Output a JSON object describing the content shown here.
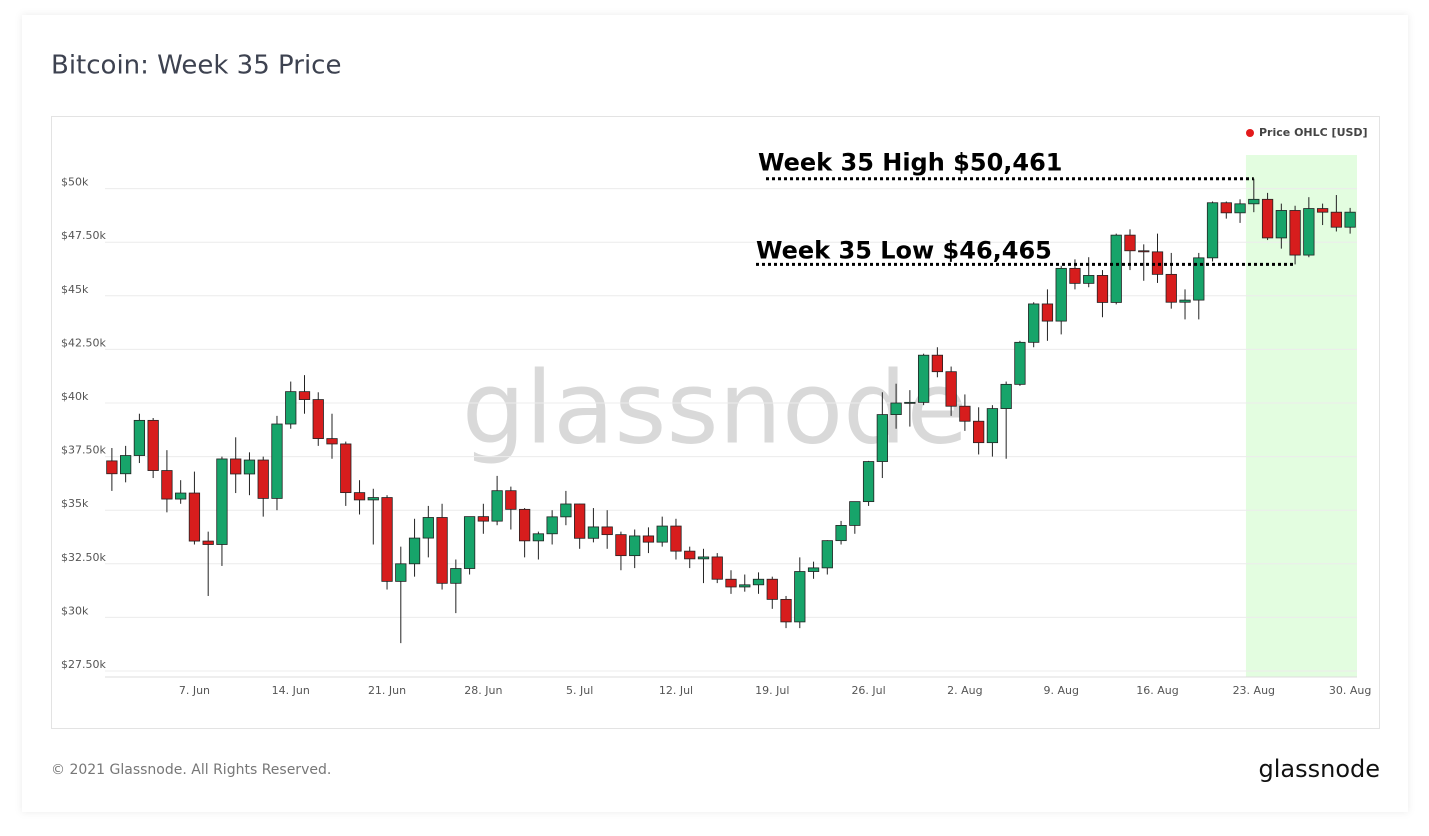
{
  "chart_data": {
    "type": "candlestick",
    "title": "Bitcoin: Week 35 Price",
    "name": "Price OHLC [USD]",
    "legend_color": "#e31a1c",
    "legend": "top-right",
    "up_color": "#17a46a",
    "down_color": "#d71d1d",
    "watermark": "glassnode",
    "footer": "© 2021 Glassnode. All Rights Reserved.",
    "logo": "glassnode",
    "highlight": {
      "from": "23. Aug",
      "color": "#e3fde0"
    },
    "annotations": [
      {
        "text": "Week 35 High $50,461",
        "value": 50461,
        "end": "high"
      },
      {
        "text": "Week 35 Low $46,465",
        "value": 46465,
        "end": "low"
      }
    ],
    "categories": [
      null,
      null,
      null,
      null,
      null,
      null,
      "7. Jun",
      null,
      null,
      null,
      null,
      null,
      null,
      "14. Jun",
      null,
      null,
      null,
      null,
      null,
      null,
      "21. Jun",
      null,
      null,
      null,
      null,
      null,
      null,
      "28. Jun",
      null,
      null,
      null,
      null,
      null,
      null,
      "5. Jul",
      null,
      null,
      null,
      null,
      null,
      null,
      "12. Jul",
      null,
      null,
      null,
      null,
      null,
      null,
      "19. Jul",
      null,
      null,
      null,
      null,
      null,
      null,
      "26. Jul",
      null,
      null,
      null,
      null,
      null,
      null,
      "2. Aug",
      null,
      null,
      null,
      null,
      null,
      null,
      "9. Aug",
      null,
      null,
      null,
      null,
      null,
      null,
      "16. Aug",
      null,
      null,
      null,
      null,
      null,
      null,
      "23. Aug",
      null,
      null,
      null,
      null,
      null,
      null,
      "30. Aug"
    ],
    "open": [
      37300,
      36700,
      37550,
      39190,
      36850,
      35520,
      35800,
      33560,
      33400,
      37390,
      36690,
      37340,
      35550,
      39020,
      40530,
      40160,
      38340,
      38090,
      35820,
      35480,
      35590,
      31680,
      32500,
      33700,
      34660,
      31590,
      32280,
      34700,
      34490,
      35910,
      35040,
      33570,
      33900,
      34690,
      35290,
      33690,
      34220,
      33860,
      32880,
      33800,
      33510,
      34260,
      33090,
      32730,
      32820,
      31780,
      31420,
      31520,
      31780,
      30840,
      29790,
      32140,
      32310,
      33580,
      34290,
      35400,
      37270,
      39460,
      40000,
      40030,
      42230,
      41460,
      39850,
      39150,
      38150,
      39740,
      40870,
      42830,
      44620,
      43820,
      46280,
      45580,
      45950,
      44690,
      47830,
      47100,
      47050,
      46000,
      44700,
      44800,
      46770,
      49340,
      48870,
      49290,
      49500,
      47700,
      48980,
      46900,
      49070,
      48900,
      48200
    ],
    "high": [
      37900,
      38000,
      39500,
      39300,
      37800,
      36400,
      36800,
      34000,
      37500,
      38400,
      37700,
      37500,
      39400,
      41000,
      41300,
      40500,
      39500,
      38200,
      36400,
      36000,
      35700,
      33300,
      34600,
      35200,
      35300,
      32700,
      34700,
      35300,
      36600,
      36100,
      35100,
      34000,
      35000,
      35900,
      35300,
      35100,
      35000,
      34000,
      34100,
      34200,
      34700,
      34600,
      33300,
      33200,
      33000,
      32200,
      32000,
      32100,
      31900,
      31000,
      32800,
      32600,
      33600,
      34500,
      35400,
      37300,
      40500,
      40900,
      40600,
      42300,
      42600,
      41700,
      40400,
      39800,
      39900,
      41000,
      42900,
      44700,
      45300,
      46400,
      46700,
      46800,
      46200,
      47900,
      48100,
      47400,
      47900,
      47000,
      45300,
      47000,
      49400,
      49400,
      49500,
      50461,
      49800,
      49300,
      49200,
      49600,
      49300,
      49700,
      49100
    ],
    "low": [
      35900,
      36300,
      37200,
      36500,
      34900,
      35300,
      33400,
      31000,
      32400,
      35800,
      35700,
      34700,
      35000,
      38800,
      39500,
      38000,
      37400,
      35200,
      34800,
      33400,
      31300,
      28800,
      31900,
      32800,
      31300,
      30200,
      32000,
      33900,
      34300,
      34100,
      32800,
      32700,
      33400,
      34300,
      33200,
      33500,
      33200,
      32200,
      32300,
      33000,
      33300,
      32700,
      32300,
      31600,
      31600,
      31100,
      31200,
      31100,
      30400,
      29500,
      29500,
      31800,
      32000,
      33400,
      33900,
      35200,
      36500,
      38800,
      38900,
      39900,
      41200,
      39400,
      38700,
      37600,
      37500,
      37400,
      40800,
      42600,
      42900,
      43200,
      45300,
      45400,
      44000,
      44600,
      46200,
      45700,
      45600,
      44400,
      43900,
      43900,
      46600,
      48600,
      48400,
      48900,
      47600,
      47200,
      46465,
      46800,
      48300,
      48000,
      47900
    ],
    "close": [
      36700,
      37550,
      39190,
      36850,
      35520,
      35800,
      33560,
      33400,
      37390,
      36690,
      37340,
      35550,
      39020,
      40530,
      40160,
      38340,
      38090,
      35820,
      35480,
      35590,
      31680,
      32500,
      33700,
      34660,
      31590,
      32280,
      34700,
      34490,
      35910,
      35040,
      33570,
      33900,
      34690,
      35290,
      33690,
      34220,
      33860,
      32880,
      33800,
      33510,
      34260,
      33090,
      32730,
      32820,
      31780,
      31420,
      31520,
      31780,
      30840,
      29790,
      32140,
      32310,
      33580,
      34290,
      35400,
      37270,
      39460,
      40000,
      40030,
      42230,
      41460,
      39850,
      39150,
      38150,
      39740,
      40870,
      42830,
      44620,
      43820,
      46280,
      45580,
      45950,
      44690,
      47830,
      47100,
      47050,
      46000,
      44700,
      44800,
      46770,
      49340,
      48870,
      49290,
      49500,
      47700,
      48980,
      46900,
      49070,
      48900,
      48200,
      48900
    ],
    "ylim": [
      27500,
      52500
    ],
    "yticks": [
      {
        "value": 27500,
        "label": "$27.50k"
      },
      {
        "value": 30000,
        "label": "$30k"
      },
      {
        "value": 32500,
        "label": "$32.50k"
      },
      {
        "value": 35000,
        "label": "$35k"
      },
      {
        "value": 37500,
        "label": "$37.50k"
      },
      {
        "value": 40000,
        "label": "$40k"
      },
      {
        "value": 42500,
        "label": "$42.50k"
      },
      {
        "value": 45000,
        "label": "$45k"
      },
      {
        "value": 47500,
        "label": "$47.50k"
      },
      {
        "value": 50000,
        "label": "$50k"
      }
    ],
    "grid": true
  }
}
